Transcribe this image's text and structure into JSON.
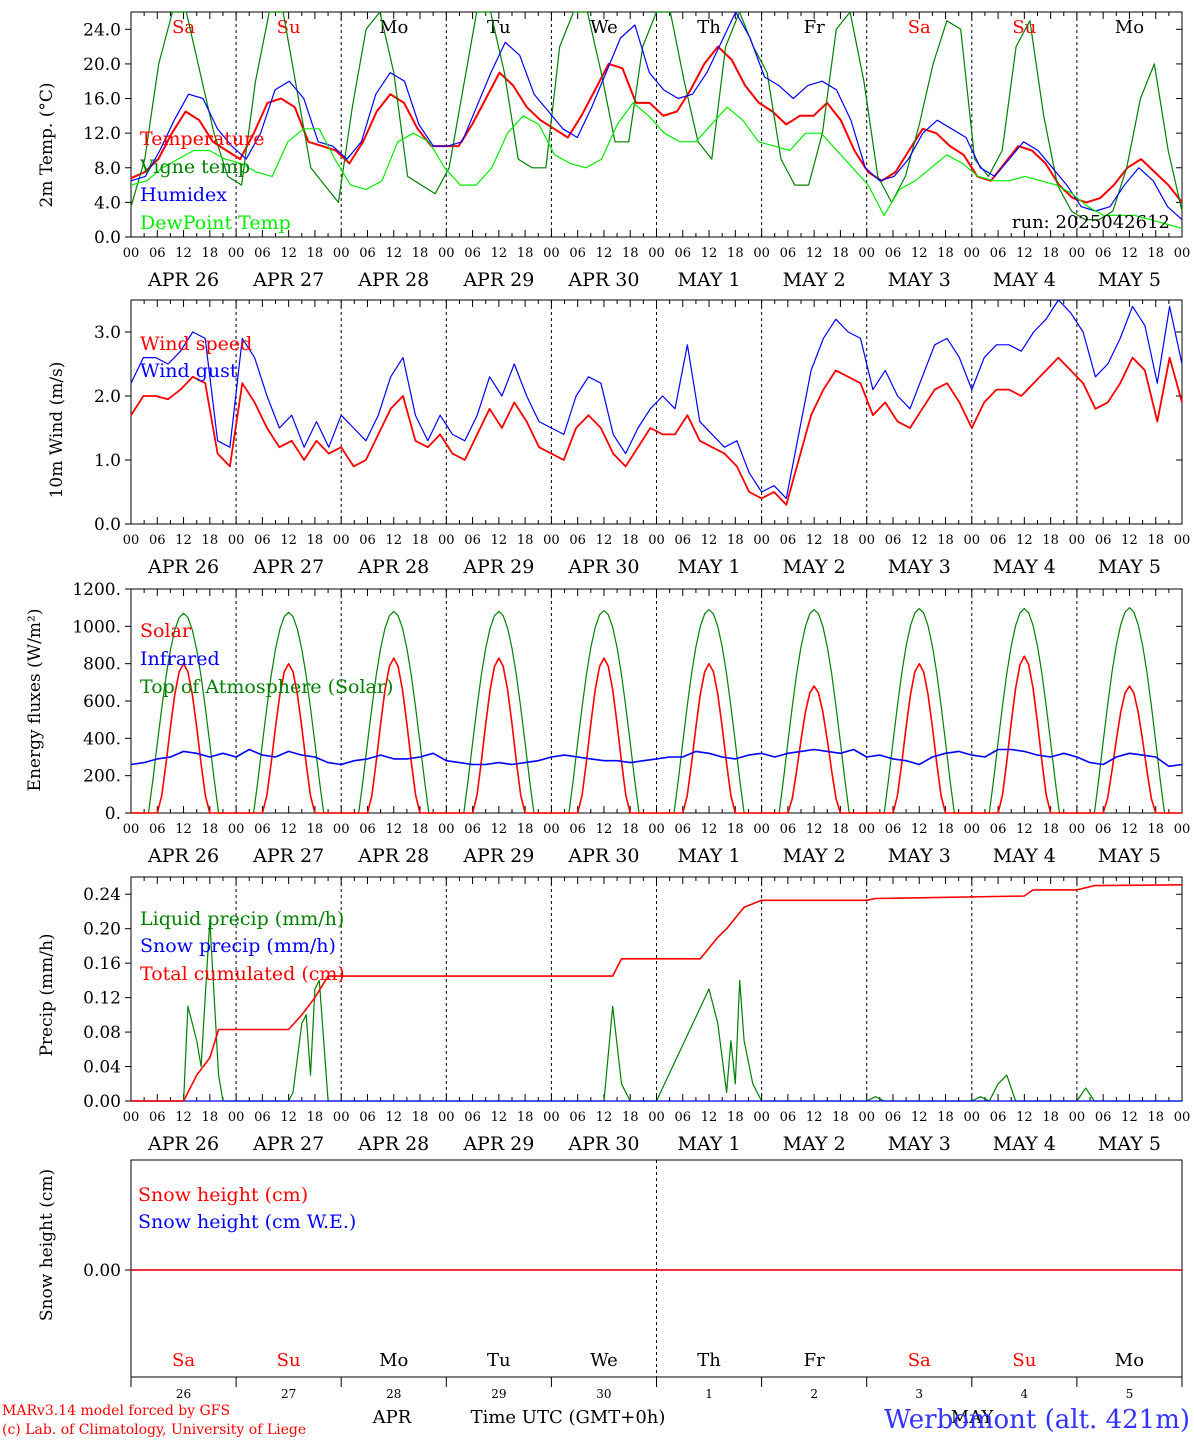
{
  "chart_data": [
    {
      "id": "temp",
      "type": "line",
      "ylabel": "2m Temp. (°C)",
      "ylim": [
        0,
        26
      ],
      "yticks": [
        "0.0",
        "4.0",
        "8.0",
        "12.0",
        "16.0",
        "20.0",
        "24.0"
      ],
      "ytick_values": [
        0,
        4,
        8,
        12,
        16,
        20,
        24
      ],
      "run_label": "run: 2025042612",
      "x_hours": [
        0,
        3,
        6,
        9,
        12,
        15,
        18,
        21,
        24,
        27,
        30,
        33,
        36,
        39,
        42,
        45,
        48,
        51,
        54,
        57,
        60,
        63,
        66,
        69,
        72,
        75,
        78,
        81,
        84,
        87,
        90,
        93,
        96,
        99,
        102,
        105,
        108,
        111,
        114,
        117,
        120,
        123,
        126,
        129,
        132,
        135,
        138,
        141,
        144,
        147,
        150,
        153,
        156,
        159,
        162,
        165,
        168,
        171,
        174,
        177,
        180,
        183,
        186,
        189,
        192,
        195,
        198,
        201,
        204,
        207,
        210,
        213,
        216,
        219,
        222,
        225,
        228,
        231,
        234,
        237,
        240
      ],
      "series": [
        {
          "name": "Temperature",
          "color": "#ff0000",
          "values": [
            6.8,
            7.5,
            9,
            12,
            14.5,
            13.5,
            11,
            10,
            9,
            12,
            15.5,
            16,
            15,
            11,
            10.5,
            10,
            8.5,
            11,
            14.5,
            16.5,
            15.5,
            12.5,
            10.5,
            10.5,
            10.5,
            13,
            16,
            19,
            17.5,
            15,
            13.5,
            12.5,
            11.5,
            14,
            17,
            20,
            19.5,
            15.5,
            15.5,
            14,
            14.5,
            17,
            20,
            22,
            20.5,
            17.5,
            15.5,
            14.5,
            13,
            14,
            14,
            15.5,
            13.5,
            10,
            7.5,
            6.5,
            7.5,
            10,
            12.5,
            12,
            10.5,
            9.5,
            7,
            6.5,
            8.5,
            10.5,
            10,
            8.5,
            6,
            4.5,
            4,
            4.5,
            6,
            8,
            9,
            7.5,
            6,
            4
          ]
        },
        {
          "name": "Vigne temp",
          "color": "#008000",
          "values": [
            3.5,
            9,
            20,
            26,
            26,
            19,
            12,
            7,
            6,
            18,
            26,
            26,
            17,
            8,
            6,
            4,
            15,
            24,
            26,
            19,
            7,
            6,
            5,
            8,
            17,
            26,
            26,
            19,
            9,
            8,
            8,
            22,
            26,
            26,
            19,
            11,
            11,
            22,
            26,
            26,
            18,
            11,
            9,
            22,
            26,
            22,
            19,
            9,
            6,
            6,
            12,
            24,
            26,
            18,
            7,
            4,
            7,
            13,
            20,
            25,
            24,
            9,
            7,
            10,
            22,
            25,
            14,
            6,
            3,
            2,
            2,
            3,
            8,
            16,
            20,
            10,
            3
          ]
        },
        {
          "name": "Humidex",
          "color": "#0000ff",
          "values": [
            6.5,
            7,
            10,
            13.5,
            16.5,
            16,
            12.5,
            10.5,
            9,
            12,
            17,
            18,
            16,
            11,
            10.5,
            9,
            11,
            16.5,
            19,
            18,
            13,
            10.5,
            10.5,
            11,
            15,
            19,
            22.5,
            21,
            16.5,
            14.5,
            12.5,
            11.5,
            15,
            19,
            23,
            24.5,
            19,
            17,
            16,
            16.5,
            19,
            22.5,
            26,
            23,
            18.5,
            17.5,
            16,
            17.5,
            18,
            17,
            13.5,
            8,
            6.5,
            7,
            9,
            12,
            13.5,
            12.5,
            11.5,
            8,
            7,
            9,
            11,
            10,
            8,
            6,
            3.5,
            3,
            3.5,
            6,
            8,
            6.5,
            3.5,
            2
          ]
        },
        {
          "name": "DewPoint Temp",
          "color": "#00ee00",
          "values": [
            6,
            6.5,
            8,
            9,
            10,
            10,
            9,
            8.5,
            7.5,
            7,
            11,
            12.5,
            12.5,
            9,
            6,
            5.5,
            6.5,
            11,
            12,
            11,
            8,
            6,
            6,
            8,
            12,
            14,
            13,
            9.5,
            8.5,
            8,
            9,
            13,
            15.5,
            14,
            12,
            11,
            11,
            13,
            15,
            13.5,
            11,
            10.5,
            10,
            12,
            12,
            10,
            8,
            6,
            2.5,
            5.5,
            6.5,
            8,
            9.5,
            8.5,
            7,
            6.5,
            6.5,
            7,
            6.5,
            6,
            5,
            3.5,
            2.5,
            2.5,
            2.5,
            2,
            1.5,
            1
          ]
        }
      ]
    },
    {
      "id": "wind",
      "type": "line",
      "ylabel": "10m Wind (m/s)",
      "ylim": [
        0,
        3.5
      ],
      "yticks": [
        "0.0",
        "1.0",
        "2.0",
        "3.0"
      ],
      "ytick_values": [
        0,
        1,
        2,
        3
      ],
      "series": [
        {
          "name": "Wind speed",
          "color": "#ff0000",
          "values": [
            1.7,
            2,
            2,
            1.95,
            2.1,
            2.3,
            2.2,
            1.1,
            0.9,
            2.2,
            1.9,
            1.5,
            1.2,
            1.3,
            1.0,
            1.3,
            1.1,
            1.2,
            0.9,
            1.0,
            1.4,
            1.8,
            2.0,
            1.3,
            1.2,
            1.4,
            1.1,
            1.0,
            1.4,
            1.8,
            1.5,
            1.9,
            1.6,
            1.2,
            1.1,
            1.0,
            1.5,
            1.7,
            1.5,
            1.1,
            0.9,
            1.2,
            1.5,
            1.4,
            1.4,
            1.7,
            1.3,
            1.2,
            1.1,
            0.9,
            0.5,
            0.4,
            0.5,
            0.3,
            1.0,
            1.7,
            2.1,
            2.4,
            2.3,
            2.2,
            1.7,
            1.9,
            1.6,
            1.5,
            1.8,
            2.1,
            2.2,
            1.9,
            1.5,
            1.9,
            2.1,
            2.1,
            2.0,
            2.2,
            2.4,
            2.6,
            2.4,
            2.2,
            1.8,
            1.9,
            2.2,
            2.6,
            2.4,
            1.6,
            2.6,
            1.9
          ]
        },
        {
          "name": "Wind gust",
          "color": "#0000ff",
          "values": [
            2.2,
            2.6,
            2.6,
            2.5,
            2.7,
            3,
            2.9,
            1.3,
            1.2,
            2.9,
            2.6,
            2,
            1.5,
            1.7,
            1.2,
            1.6,
            1.2,
            1.7,
            1.5,
            1.3,
            1.7,
            2.3,
            2.6,
            1.7,
            1.3,
            1.7,
            1.4,
            1.3,
            1.7,
            2.3,
            2.0,
            2.5,
            2.0,
            1.6,
            1.5,
            1.4,
            2.0,
            2.3,
            2.2,
            1.4,
            1.1,
            1.5,
            1.8,
            2.0,
            1.8,
            2.8,
            1.6,
            1.4,
            1.2,
            1.3,
            0.8,
            0.5,
            0.6,
            0.4,
            1.4,
            2.4,
            2.9,
            3.2,
            3.0,
            2.9,
            2.1,
            2.4,
            2.0,
            1.8,
            2.3,
            2.8,
            2.9,
            2.6,
            2.1,
            2.6,
            2.8,
            2.8,
            2.7,
            3.0,
            3.2,
            3.5,
            3.3,
            3.0,
            2.3,
            2.5,
            2.9,
            3.4,
            3.1,
            2.2,
            3.4,
            2.5
          ]
        }
      ]
    },
    {
      "id": "energy",
      "type": "line",
      "ylabel": "Energy fluxes (W/m²)",
      "ylim": [
        0,
        1200
      ],
      "yticks": [
        "0.",
        "200.",
        "400.",
        "600.",
        "800.",
        "1000.",
        "1200."
      ],
      "ytick_values": [
        0,
        200,
        400,
        600,
        800,
        1000,
        1200
      ],
      "series": [
        {
          "name": "Solar",
          "color": "#ff0000",
          "day_peaks": [
            800,
            800,
            830,
            830,
            830,
            800,
            680,
            800,
            840,
            680
          ],
          "note_days": [
            0,
            1,
            2,
            3,
            4,
            5,
            6,
            7,
            8,
            9
          ]
        },
        {
          "name": "Infrared",
          "color": "#0000ff",
          "values": [
            260,
            270,
            290,
            300,
            330,
            320,
            300,
            320,
            300,
            340,
            310,
            300,
            330,
            310,
            300,
            270,
            260,
            280,
            290,
            310,
            290,
            290,
            300,
            320,
            280,
            270,
            260,
            260,
            270,
            260,
            270,
            280,
            300,
            310,
            300,
            290,
            280,
            280,
            270,
            280,
            290,
            300,
            300,
            330,
            320,
            300,
            290,
            310,
            320,
            300,
            320,
            330,
            340,
            330,
            320,
            340,
            300,
            310,
            290,
            280,
            260,
            300,
            320,
            330,
            310,
            300,
            340,
            340,
            330,
            310,
            300,
            320,
            300,
            270,
            260,
            300,
            320,
            310,
            300,
            250,
            260
          ]
        },
        {
          "name": "Top of Atmosphere (Solar)",
          "color": "#008000",
          "day_peaks": [
            1070,
            1075,
            1080,
            1080,
            1085,
            1090,
            1090,
            1095,
            1095,
            1100
          ]
        }
      ]
    },
    {
      "id": "precip",
      "type": "line",
      "ylabel": "Precip (mm/h)",
      "ylim": [
        0,
        0.26
      ],
      "yticks": [
        "0.00",
        "0.04",
        "0.08",
        "0.12",
        "0.16",
        "0.20",
        "0.24"
      ],
      "ytick_values": [
        0,
        0.04,
        0.08,
        0.12,
        0.16,
        0.2,
        0.24
      ],
      "series": [
        {
          "name": "Liquid precip (mm/h)",
          "color": "#008000",
          "points": [
            [
              0,
              0
            ],
            [
              12,
              0
            ],
            [
              13,
              0.11
            ],
            [
              15,
              0.07
            ],
            [
              16,
              0.04
            ],
            [
              18,
              0.21
            ],
            [
              20,
              0.03
            ],
            [
              21,
              0
            ],
            [
              36,
              0
            ],
            [
              37,
              0.01
            ],
            [
              39,
              0.09
            ],
            [
              40,
              0.1
            ],
            [
              41,
              0.03
            ],
            [
              42,
              0.13
            ],
            [
              43,
              0.14
            ],
            [
              45,
              0
            ],
            [
              108,
              0
            ],
            [
              110,
              0.11
            ],
            [
              112,
              0.02
            ],
            [
              114,
              0
            ],
            [
              120,
              0
            ],
            [
              132,
              0.13
            ],
            [
              134,
              0.09
            ],
            [
              136,
              0.01
            ],
            [
              137,
              0.07
            ],
            [
              138,
              0.02
            ],
            [
              139,
              0.14
            ],
            [
              140,
              0.07
            ],
            [
              142,
              0.02
            ],
            [
              144,
              0
            ],
            [
              168,
              0
            ],
            [
              170,
              0.005
            ],
            [
              172,
              0
            ],
            [
              192,
              0
            ],
            [
              194,
              0.005
            ],
            [
              196,
              0
            ],
            [
              198,
              0.02
            ],
            [
              200,
              0.03
            ],
            [
              202,
              0
            ],
            [
              216,
              0
            ],
            [
              218,
              0.015
            ],
            [
              220,
              0
            ],
            [
              240,
              0
            ]
          ]
        },
        {
          "name": "Snow precip (mm/h)",
          "color": "#0000ff",
          "points": [
            [
              0,
              0
            ],
            [
              240,
              0
            ]
          ]
        },
        {
          "name": "Total cumulated (cm)",
          "color": "#ff0000",
          "points": [
            [
              0,
              0
            ],
            [
              12,
              0
            ],
            [
              15,
              0.03
            ],
            [
              18,
              0.05
            ],
            [
              20,
              0.083
            ],
            [
              36,
              0.083
            ],
            [
              39,
              0.1
            ],
            [
              42,
              0.12
            ],
            [
              45,
              0.145
            ],
            [
              110,
              0.145
            ],
            [
              112,
              0.165
            ],
            [
              130,
              0.165
            ],
            [
              134,
              0.19
            ],
            [
              136,
              0.2
            ],
            [
              140,
              0.225
            ],
            [
              144,
              0.233
            ],
            [
              168,
              0.233
            ],
            [
              170,
              0.235
            ],
            [
              204,
              0.238
            ],
            [
              206,
              0.245
            ],
            [
              216,
              0.245
            ],
            [
              220,
              0.25
            ],
            [
              240,
              0.251
            ]
          ]
        }
      ]
    },
    {
      "id": "snow",
      "type": "line",
      "ylabel": "Snow height (cm)",
      "yticks": [
        "0.00"
      ],
      "series": [
        {
          "name": "Snow height (cm)",
          "color": "#ff0000",
          "points": [
            [
              0,
              0
            ],
            [
              240,
              0
            ]
          ]
        },
        {
          "name": "Snow height (cm W.E.)",
          "color": "#0000ff",
          "points": [
            [
              0,
              0
            ],
            [
              240,
              0
            ]
          ]
        }
      ]
    }
  ],
  "axis": {
    "hour_ticks": [
      "00",
      "06",
      "12",
      "18"
    ],
    "end_tick": "00",
    "date_labels": [
      "APR 26",
      "APR 27",
      "APR 28",
      "APR 29",
      "APR 30",
      "MAY  1",
      "MAY  2",
      "MAY  3",
      "MAY  4",
      "MAY  5"
    ],
    "weekdays": [
      "Sa",
      "Su",
      "Mo",
      "Tu",
      "We",
      "Th",
      "Fr",
      "Sa",
      "Su",
      "Mo"
    ],
    "weekday_colors": [
      "#ff0000",
      "#ff0000",
      "#000000",
      "#000000",
      "#000000",
      "#000000",
      "#000000",
      "#ff0000",
      "#ff0000",
      "#000000"
    ],
    "day_numbers": [
      "26",
      "27",
      "28",
      "29",
      "30",
      "1",
      "2",
      "3",
      "4",
      "5"
    ],
    "month_left": "APR",
    "month_right": "MAY",
    "xlabel": "Time UTC (GMT+0h)"
  },
  "footer": {
    "credit_line1": "MARv3.14 model forced by GFS",
    "credit_line2": "(c) Lab. of Climatology, University of Liege",
    "station": "Werbomont (alt. 421m)"
  }
}
